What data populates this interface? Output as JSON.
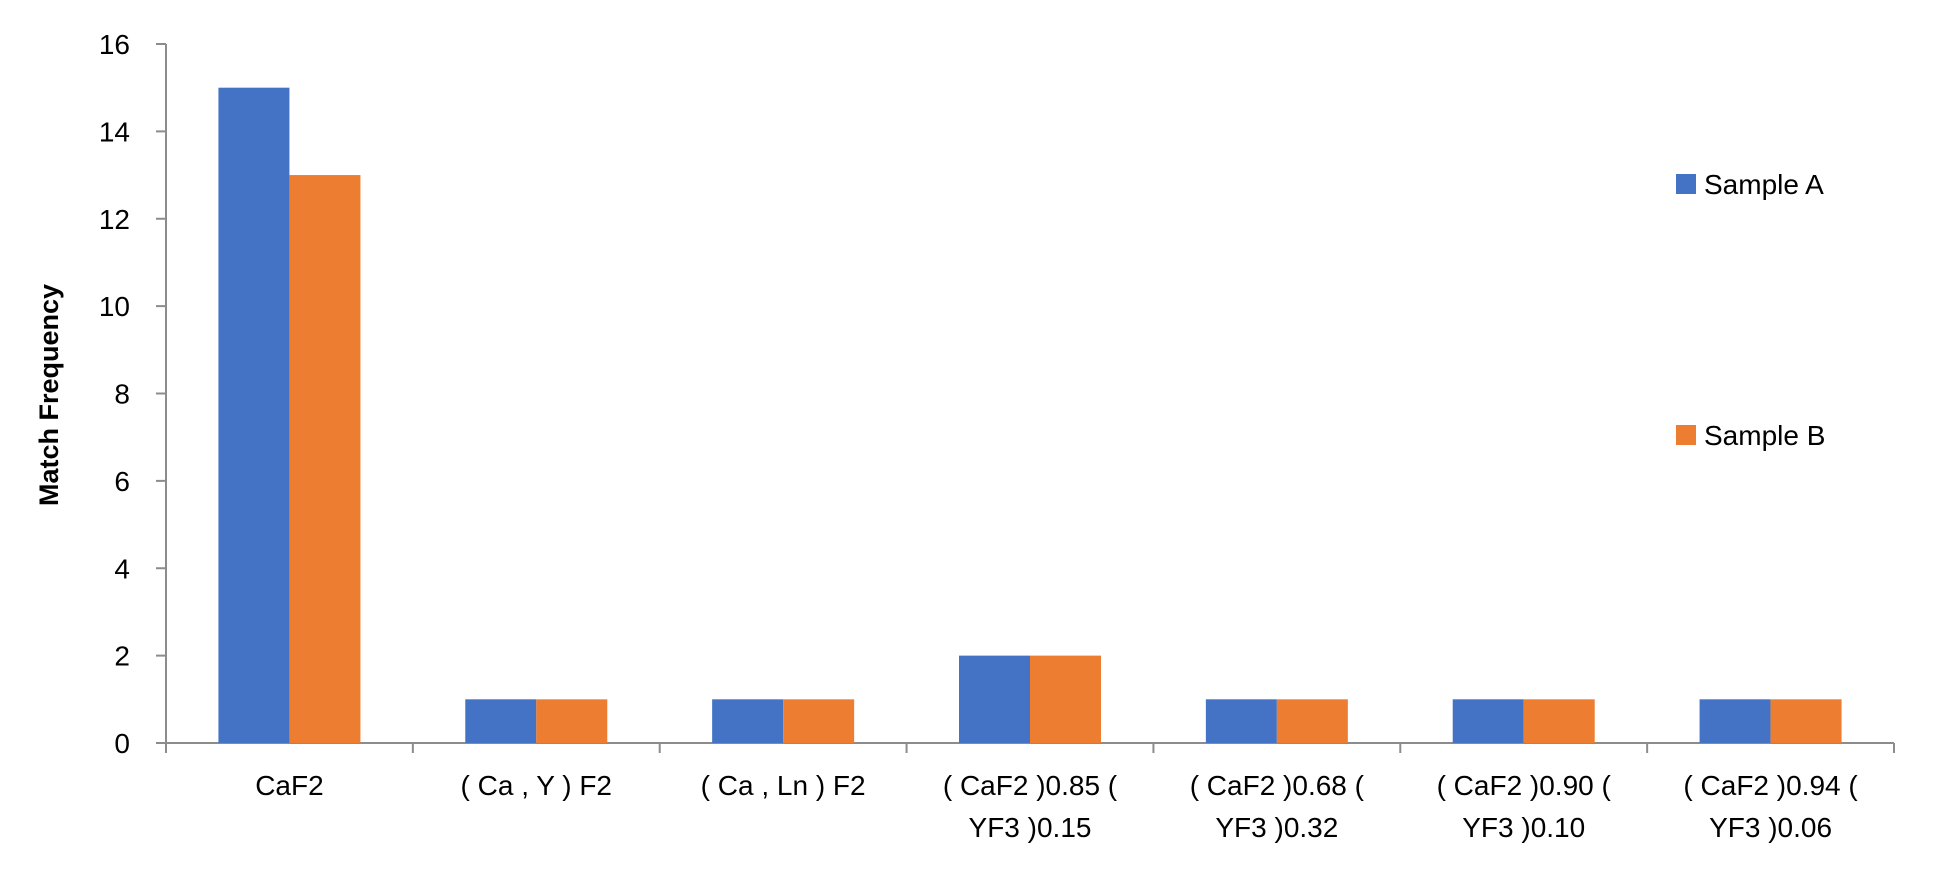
{
  "chart_data": {
    "type": "bar",
    "title": "",
    "xlabel": "",
    "ylabel": "Match Frequency",
    "ylim": [
      0,
      16
    ],
    "yticks": [
      0,
      2,
      4,
      6,
      8,
      10,
      12,
      14,
      16
    ],
    "grid": false,
    "legend_position": "right",
    "categories": [
      [
        "CaF2"
      ],
      [
        "( Ca , Y ) F2"
      ],
      [
        "( Ca , Ln ) F2"
      ],
      [
        "( CaF2 )0.85 (",
        "YF3 )0.15"
      ],
      [
        "( CaF2 )0.68 (",
        "YF3 )0.32"
      ],
      [
        "( CaF2 )0.90 (",
        "YF3 )0.10"
      ],
      [
        "( CaF2 )0.94 (",
        "YF3 )0.06"
      ]
    ],
    "series": [
      {
        "name": "Sample A",
        "color": "#4472C4",
        "values": [
          15,
          1,
          1,
          2,
          1,
          1,
          1
        ]
      },
      {
        "name": "Sample B",
        "color": "#ED7D31",
        "values": [
          13,
          1,
          1,
          2,
          1,
          1,
          1
        ]
      }
    ]
  }
}
